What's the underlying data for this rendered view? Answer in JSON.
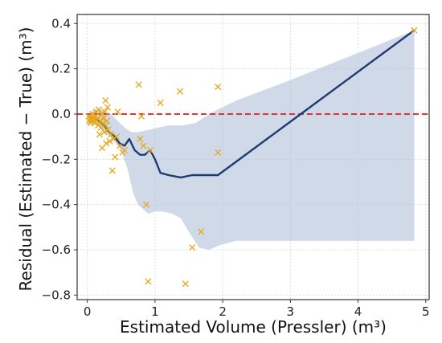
{
  "chart_data": {
    "type": "scatter",
    "title": "",
    "xlabel": "Estimated Volume (Pressler) (m³)",
    "ylabel": "Residual (Estimated − True) (m³)",
    "xlim": [
      -0.15,
      5.05
    ],
    "ylim": [
      -0.82,
      0.44
    ],
    "xticks": [
      0,
      1,
      2,
      3,
      4,
      5
    ],
    "yticks": [
      -0.8,
      -0.6,
      -0.4,
      -0.2,
      0.0,
      0.2,
      0.4
    ],
    "xtick_labels": [
      "0",
      "1",
      "2",
      "3",
      "4",
      "5"
    ],
    "ytick_labels": [
      "−0.8",
      "−0.6",
      "−0.4",
      "−0.2",
      "0.0",
      "0.2",
      "0.4"
    ],
    "grid": true,
    "reference_line": {
      "y": 0.0,
      "color": "#e31a1c",
      "style": "dashed"
    },
    "colors": {
      "points": "#e6a817",
      "trend": "#1f3b73",
      "band": "#b7c4dc"
    },
    "points": [
      [
        0.02,
        -0.01
      ],
      [
        0.03,
        -0.03
      ],
      [
        0.04,
        -0.02
      ],
      [
        0.05,
        -0.04
      ],
      [
        0.06,
        -0.03
      ],
      [
        0.07,
        -0.02
      ],
      [
        0.08,
        0.0
      ],
      [
        0.09,
        -0.03
      ],
      [
        0.1,
        -0.02
      ],
      [
        0.11,
        -0.04
      ],
      [
        0.12,
        -0.01
      ],
      [
        0.13,
        0.01
      ],
      [
        0.14,
        -0.03
      ],
      [
        0.15,
        -0.02
      ],
      [
        0.16,
        -0.05
      ],
      [
        0.17,
        0.02
      ],
      [
        0.18,
        -0.09
      ],
      [
        0.19,
        -0.03
      ],
      [
        0.2,
        -0.06
      ],
      [
        0.21,
        0.0
      ],
      [
        0.22,
        -0.15
      ],
      [
        0.23,
        -0.04
      ],
      [
        0.24,
        -0.02
      ],
      [
        0.25,
        -0.08
      ],
      [
        0.26,
        0.01
      ],
      [
        0.27,
        -0.05
      ],
      [
        0.28,
        -0.13
      ],
      [
        0.29,
        -0.03
      ],
      [
        0.3,
        0.03
      ],
      [
        0.31,
        -0.07
      ],
      [
        0.33,
        -0.12
      ],
      [
        0.35,
        -0.09
      ],
      [
        0.37,
        -0.25
      ],
      [
        0.39,
        -0.11
      ],
      [
        0.41,
        -0.19
      ],
      [
        0.43,
        -0.1
      ],
      [
        0.45,
        0.01
      ],
      [
        0.48,
        -0.14
      ],
      [
        0.52,
        -0.17
      ],
      [
        0.55,
        -0.16
      ],
      [
        0.27,
        0.06
      ],
      [
        0.76,
        0.13
      ],
      [
        0.78,
        -0.11
      ],
      [
        0.8,
        -0.01
      ],
      [
        0.83,
        -0.14
      ],
      [
        0.87,
        -0.4
      ],
      [
        0.9,
        -0.74
      ],
      [
        0.93,
        -0.16
      ],
      [
        1.08,
        0.05
      ],
      [
        1.37,
        0.1
      ],
      [
        1.45,
        -0.75
      ],
      [
        1.55,
        -0.59
      ],
      [
        1.68,
        -0.52
      ],
      [
        1.93,
        0.12
      ],
      [
        1.93,
        -0.17
      ],
      [
        4.83,
        0.37
      ]
    ],
    "trend": [
      [
        0.02,
        -0.01
      ],
      [
        0.1,
        -0.02
      ],
      [
        0.18,
        -0.03
      ],
      [
        0.25,
        -0.05
      ],
      [
        0.32,
        -0.08
      ],
      [
        0.4,
        -0.1
      ],
      [
        0.48,
        -0.13
      ],
      [
        0.55,
        -0.14
      ],
      [
        0.62,
        -0.11
      ],
      [
        0.7,
        -0.16
      ],
      [
        0.78,
        -0.18
      ],
      [
        0.85,
        -0.18
      ],
      [
        0.93,
        -0.16
      ],
      [
        1.0,
        -0.2
      ],
      [
        1.08,
        -0.26
      ],
      [
        1.2,
        -0.27
      ],
      [
        1.38,
        -0.28
      ],
      [
        1.55,
        -0.27
      ],
      [
        1.93,
        -0.27
      ],
      [
        4.83,
        0.37
      ]
    ],
    "band_upper": [
      [
        0.02,
        0.0
      ],
      [
        0.1,
        0.02
      ],
      [
        0.2,
        0.02
      ],
      [
        0.35,
        0.0
      ],
      [
        0.45,
        -0.03
      ],
      [
        0.55,
        -0.06
      ],
      [
        0.65,
        -0.08
      ],
      [
        0.75,
        -0.08
      ],
      [
        0.9,
        -0.07
      ],
      [
        1.05,
        -0.06
      ],
      [
        1.2,
        -0.05
      ],
      [
        1.4,
        -0.05
      ],
      [
        1.6,
        -0.04
      ],
      [
        1.8,
        0.0
      ],
      [
        1.93,
        0.02
      ],
      [
        2.2,
        0.06
      ],
      [
        3.0,
        0.15
      ],
      [
        4.0,
        0.27
      ],
      [
        4.83,
        0.37
      ]
    ],
    "band_lower": [
      [
        4.83,
        -0.56
      ],
      [
        4.0,
        -0.56
      ],
      [
        3.0,
        -0.56
      ],
      [
        2.2,
        -0.56
      ],
      [
        1.95,
        -0.58
      ],
      [
        1.8,
        -0.6
      ],
      [
        1.65,
        -0.59
      ],
      [
        1.5,
        -0.52
      ],
      [
        1.38,
        -0.46
      ],
      [
        1.25,
        -0.44
      ],
      [
        1.1,
        -0.43
      ],
      [
        1.0,
        -0.43
      ],
      [
        0.9,
        -0.44
      ],
      [
        0.82,
        -0.42
      ],
      [
        0.75,
        -0.4
      ],
      [
        0.68,
        -0.35
      ],
      [
        0.6,
        -0.25
      ],
      [
        0.5,
        -0.16
      ],
      [
        0.4,
        -0.12
      ],
      [
        0.3,
        -0.09
      ],
      [
        0.2,
        -0.06
      ],
      [
        0.1,
        -0.04
      ],
      [
        0.02,
        -0.02
      ]
    ]
  }
}
